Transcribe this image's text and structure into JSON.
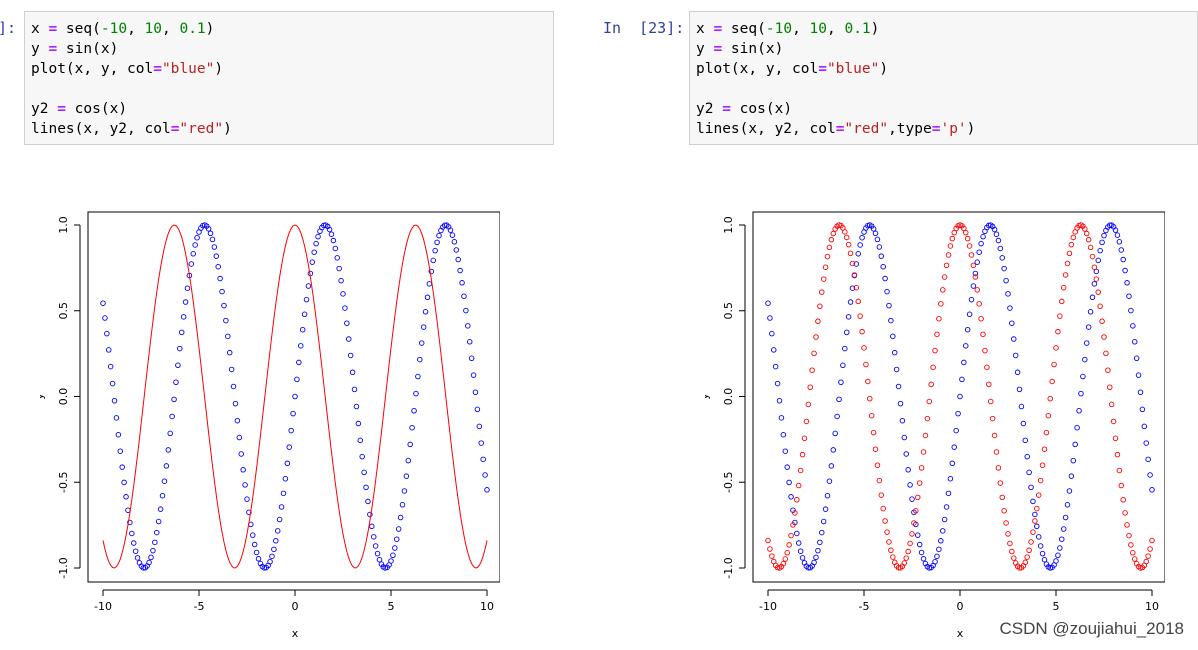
{
  "cells": [
    {
      "prompt": "]:",
      "code": [
        [
          [
            "x ",
            "t"
          ],
          [
            "=",
            "o"
          ],
          [
            " seq(",
            "t"
          ],
          [
            "-10",
            "n"
          ],
          [
            ", ",
            "t"
          ],
          [
            "10",
            "n"
          ],
          [
            ", ",
            "t"
          ],
          [
            "0.1",
            "n"
          ],
          [
            ")",
            "t"
          ]
        ],
        [
          [
            "y ",
            "t"
          ],
          [
            "=",
            "o"
          ],
          [
            " sin(x)",
            "t"
          ]
        ],
        [
          [
            "plot(x, y, col",
            "t"
          ],
          [
            "=",
            "o"
          ],
          [
            "\"blue\"",
            "s"
          ],
          [
            ")",
            "t"
          ]
        ],
        [],
        [
          [
            "y2 ",
            "t"
          ],
          [
            "=",
            "o"
          ],
          [
            " cos(x)",
            "t"
          ]
        ],
        [
          [
            "lines(x, y2, col",
            "t"
          ],
          [
            "=",
            "o"
          ],
          [
            "\"red\"",
            "s"
          ],
          [
            ")",
            "t"
          ]
        ]
      ]
    },
    {
      "prompt": "In  [23]:",
      "code": [
        [
          [
            "x ",
            "t"
          ],
          [
            "=",
            "o"
          ],
          [
            " seq(",
            "t"
          ],
          [
            "-10",
            "n"
          ],
          [
            ", ",
            "t"
          ],
          [
            "10",
            "n"
          ],
          [
            ", ",
            "t"
          ],
          [
            "0.1",
            "n"
          ],
          [
            ")",
            "t"
          ]
        ],
        [
          [
            "y ",
            "t"
          ],
          [
            "=",
            "o"
          ],
          [
            " sin(x)",
            "t"
          ]
        ],
        [
          [
            "plot(x, y, col",
            "t"
          ],
          [
            "=",
            "o"
          ],
          [
            "\"blue\"",
            "s"
          ],
          [
            ")",
            "t"
          ]
        ],
        [],
        [
          [
            "y2 ",
            "t"
          ],
          [
            "=",
            "o"
          ],
          [
            " cos(x)",
            "t"
          ]
        ],
        [
          [
            "lines(x, y2, col",
            "t"
          ],
          [
            "=",
            "o"
          ],
          [
            "\"red\"",
            "s"
          ],
          [
            ",type",
            "t"
          ],
          [
            "=",
            "o"
          ],
          [
            "'p'",
            "s"
          ],
          [
            ")",
            "t"
          ]
        ]
      ]
    }
  ],
  "chart_data": [
    {
      "type": "scatter",
      "xlabel": "x",
      "ylabel": "y",
      "xlim": [
        -10,
        10
      ],
      "ylim": [
        -1,
        1
      ],
      "xticks": [
        "-10",
        "-5",
        "0",
        "5",
        "10"
      ],
      "yticks": [
        "-1.0",
        "-0.5",
        "0.0",
        "0.5",
        "1.0"
      ],
      "grid": false,
      "x": {
        "from": -10,
        "to": 10,
        "by": 0.1
      },
      "series": [
        {
          "function": "sin(x)",
          "style": "points",
          "color": "#0000ff"
        },
        {
          "function": "cos(x)",
          "style": "line",
          "color": "#ff0000"
        }
      ]
    },
    {
      "type": "scatter",
      "xlabel": "x",
      "ylabel": "y",
      "xlim": [
        -10,
        10
      ],
      "ylim": [
        -1,
        1
      ],
      "xticks": [
        "-10",
        "-5",
        "0",
        "5",
        "10"
      ],
      "yticks": [
        "-1.0",
        "-0.5",
        "0.0",
        "0.5",
        "1.0"
      ],
      "grid": false,
      "x": {
        "from": -10,
        "to": 10,
        "by": 0.1
      },
      "series": [
        {
          "function": "sin(x)",
          "style": "points",
          "color": "#0000ff"
        },
        {
          "function": "cos(x)",
          "style": "points",
          "color": "#ff0000"
        }
      ]
    }
  ],
  "watermark": "CSDN @zoujiahui_2018"
}
